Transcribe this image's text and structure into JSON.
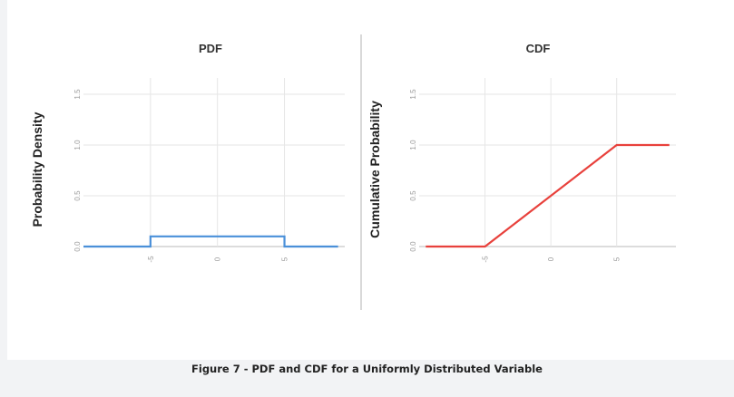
{
  "caption": "Figure 7 - PDF and CDF for a Uniformly Distributed Variable",
  "colors": {
    "pdf": "#4a90d9",
    "cdf": "#e8413c",
    "grid": "#e6e6e6",
    "axis": "#d0d0d0"
  },
  "chart_data": [
    {
      "type": "line",
      "title": "PDF",
      "ylabel": "Probability Density",
      "xlabel": "",
      "xlim": [
        -10,
        9.5
      ],
      "ylim": [
        0,
        1.5
      ],
      "xticks": [
        -5,
        0,
        5
      ],
      "yticks": [
        "0.0",
        "0.5",
        "1.0",
        "1.5"
      ],
      "grid": true,
      "series": [
        {
          "x": [
            -10,
            -5,
            -5,
            5,
            5,
            9
          ],
          "y": [
            0,
            0,
            0.1,
            0.1,
            0,
            0
          ]
        }
      ]
    },
    {
      "type": "line",
      "title": "CDF",
      "ylabel": "Cumulative Probability",
      "xlabel": "",
      "xlim": [
        -10,
        9.5
      ],
      "ylim": [
        0,
        1.5
      ],
      "xticks": [
        -5,
        0,
        5
      ],
      "yticks": [
        "0.0",
        "0.5",
        "1.0",
        "1.5"
      ],
      "grid": true,
      "series": [
        {
          "x": [
            -9.5,
            -5,
            5,
            9
          ],
          "y": [
            0,
            0,
            1,
            1
          ]
        }
      ]
    }
  ]
}
